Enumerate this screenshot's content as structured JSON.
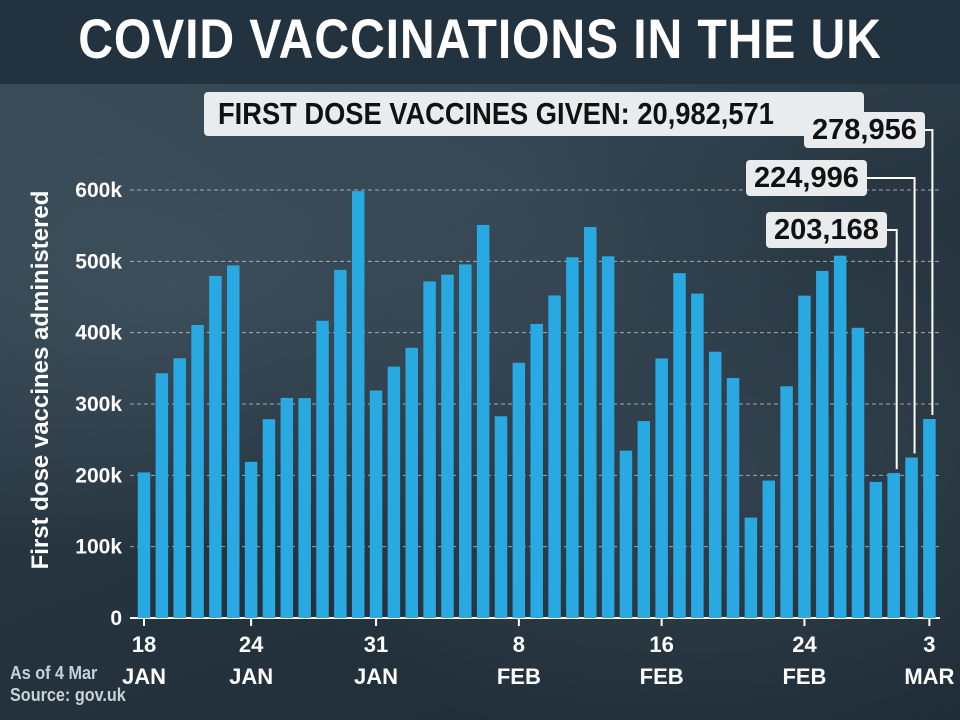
{
  "title": "COVID VACCINATIONS IN THE UK",
  "total_label": "FIRST DOSE VACCINES GIVEN: 20,982,571",
  "callouts": [
    "203,168",
    "224,996",
    "278,956"
  ],
  "footnote": {
    "as_of": "As of 4 Mar",
    "source": "Source: gov.uk"
  },
  "colors": {
    "bar": "#29a9e1",
    "title_bg": "#22323e",
    "label_box": "#e9ebec"
  },
  "chart_data": {
    "type": "bar",
    "ylabel": "First dose vaccines administered",
    "ylim": [
      0,
      600000
    ],
    "yticks": [
      {
        "value": 0,
        "label": "0"
      },
      {
        "value": 100000,
        "label": "100k"
      },
      {
        "value": 200000,
        "label": "200k"
      },
      {
        "value": 300000,
        "label": "300k"
      },
      {
        "value": 400000,
        "label": "400k"
      },
      {
        "value": 500000,
        "label": "500k"
      },
      {
        "value": 600000,
        "label": "600k"
      }
    ],
    "grid": true,
    "categories": [
      "18 Jan",
      "19 Jan",
      "20 Jan",
      "21 Jan",
      "22 Jan",
      "23 Jan",
      "24 Jan",
      "25 Jan",
      "26 Jan",
      "27 Jan",
      "28 Jan",
      "29 Jan",
      "30 Jan",
      "31 Jan",
      "1 Feb",
      "2 Feb",
      "3 Feb",
      "4 Feb",
      "5 Feb",
      "6 Feb",
      "7 Feb",
      "8 Feb",
      "9 Feb",
      "10 Feb",
      "11 Feb",
      "12 Feb",
      "13 Feb",
      "14 Feb",
      "15 Feb",
      "16 Feb",
      "17 Feb",
      "18 Feb",
      "19 Feb",
      "20 Feb",
      "21 Feb",
      "22 Feb",
      "23 Feb",
      "24 Feb",
      "25 Feb",
      "26 Feb",
      "27 Feb",
      "28 Feb",
      "1 Mar",
      "2 Mar",
      "3 Mar"
    ],
    "values": [
      204076,
      343163,
      364100,
      410800,
      479600,
      494300,
      218900,
      278700,
      308600,
      308300,
      416700,
      488000,
      598400,
      319000,
      352400,
      378800,
      471900,
      481300,
      495700,
      551000,
      282800,
      357800,
      412300,
      452200,
      505700,
      548100,
      507100,
      234600,
      276100,
      363900,
      483500,
      454800,
      373300,
      336500,
      140800,
      192700,
      324800,
      451900,
      486600,
      507900,
      406800,
      190800,
      203168,
      224996,
      278956
    ],
    "xtick_labels": [
      {
        "index": 0,
        "day": "18",
        "month": "JAN"
      },
      {
        "index": 6,
        "day": "24",
        "month": "JAN"
      },
      {
        "index": 13,
        "day": "31",
        "month": "JAN"
      },
      {
        "index": 21,
        "day": "8",
        "month": "FEB"
      },
      {
        "index": 29,
        "day": "16",
        "month": "FEB"
      },
      {
        "index": 37,
        "day": "24",
        "month": "FEB"
      },
      {
        "index": 44,
        "day": "3",
        "month": "MAR"
      }
    ],
    "annotations": [
      {
        "index": 42,
        "label": "203,168"
      },
      {
        "index": 43,
        "label": "224,996"
      },
      {
        "index": 44,
        "label": "278,956"
      }
    ]
  }
}
